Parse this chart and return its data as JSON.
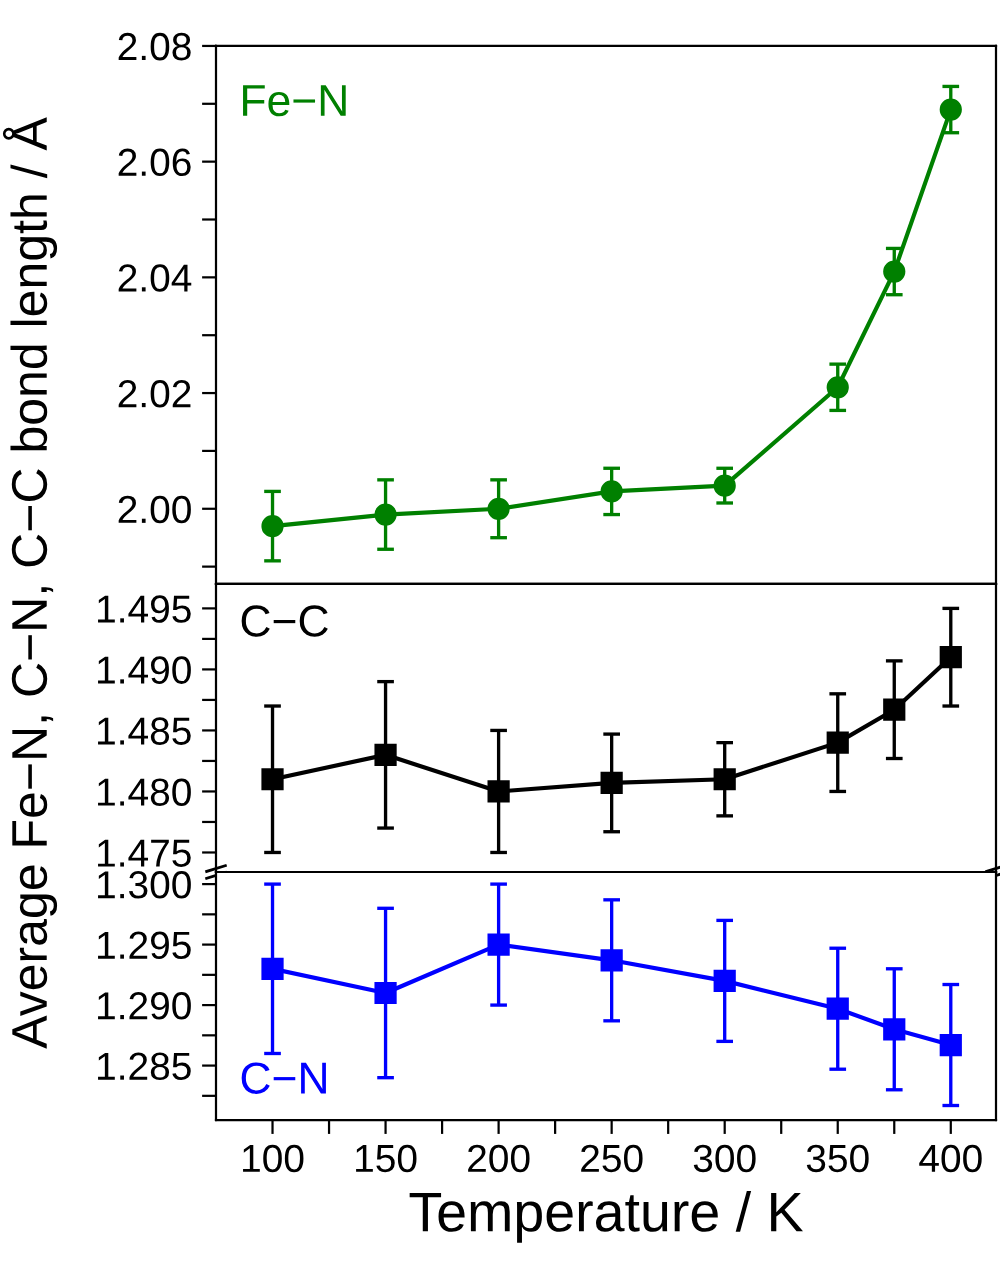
{
  "chart_data": [
    {
      "type": "line",
      "ylabel": "Average Fe−N, C−N, C−C bond length / Å",
      "x": [
        100,
        150,
        200,
        250,
        300,
        350,
        375,
        400
      ],
      "xlim": [
        75,
        420
      ],
      "xticks": [
        {
          "value": 100,
          "label": null
        },
        {
          "value": 125,
          "label": null
        },
        {
          "value": 150,
          "label": null
        },
        {
          "value": 175,
          "label": null
        },
        {
          "value": 200,
          "label": null
        },
        {
          "value": 225,
          "label": null
        },
        {
          "value": 250,
          "label": null
        },
        {
          "value": 275,
          "label": null
        },
        {
          "value": 300,
          "label": null
        },
        {
          "value": 325,
          "label": null
        },
        {
          "value": 350,
          "label": null
        },
        {
          "value": 375,
          "label": null
        },
        {
          "value": 400,
          "label": null
        }
      ],
      "ylim": [
        1.987,
        2.08
      ],
      "yticks": [
        {
          "value": 1.99,
          "label": null
        },
        {
          "value": 2.0,
          "label": "2.00"
        },
        {
          "value": 2.01,
          "label": null
        },
        {
          "value": 2.02,
          "label": "2.02"
        },
        {
          "value": 2.03,
          "label": null
        },
        {
          "value": 2.04,
          "label": "2.04"
        },
        {
          "value": 2.05,
          "label": null
        },
        {
          "value": 2.06,
          "label": "2.06"
        },
        {
          "value": 2.07,
          "label": null
        },
        {
          "value": 2.08,
          "label": "2.08"
        }
      ],
      "series": [
        {
          "name": "Fe−N",
          "color": "#008000",
          "values": [
            1.997,
            1.999,
            2.0,
            2.003,
            2.004,
            2.021,
            2.041,
            2.069
          ],
          "errors": [
            0.006,
            0.006,
            0.005,
            0.004,
            0.003,
            0.004,
            0.004,
            0.004
          ]
        }
      ],
      "marker": "circle",
      "line_style": "solid",
      "legend": "top left",
      "grid": false,
      "tick_labels": "y"
    },
    {
      "type": "line",
      "x": [
        100,
        150,
        200,
        250,
        300,
        350,
        375,
        400
      ],
      "xlim": [
        75,
        420
      ],
      "xticks": [
        {
          "value": 100,
          "label": null
        },
        {
          "value": 125,
          "label": null
        },
        {
          "value": 150,
          "label": null
        },
        {
          "value": 175,
          "label": null
        },
        {
          "value": 200,
          "label": null
        },
        {
          "value": 225,
          "label": null
        },
        {
          "value": 250,
          "label": null
        },
        {
          "value": 275,
          "label": null
        },
        {
          "value": 300,
          "label": null
        },
        {
          "value": 325,
          "label": null
        },
        {
          "value": 350,
          "label": null
        },
        {
          "value": 375,
          "label": null
        },
        {
          "value": 400,
          "label": null
        }
      ],
      "ylim": [
        1.4734,
        1.497
      ],
      "yticks": [
        {
          "value": 1.475,
          "label": "1.475"
        },
        {
          "value": 1.4775,
          "label": null
        },
        {
          "value": 1.48,
          "label": "1.480"
        },
        {
          "value": 1.4825,
          "label": null
        },
        {
          "value": 1.485,
          "label": "1.485"
        },
        {
          "value": 1.4875,
          "label": null
        },
        {
          "value": 1.49,
          "label": "1.490"
        },
        {
          "value": 1.4925,
          "label": null
        },
        {
          "value": 1.495,
          "label": "1.495"
        }
      ],
      "series": [
        {
          "name": "C−C",
          "color": "#000000",
          "values": [
            1.481,
            1.483,
            1.48,
            1.4807,
            1.481,
            1.484,
            1.4867,
            1.491
          ],
          "errors": [
            0.006,
            0.006,
            0.005,
            0.004,
            0.003,
            0.004,
            0.004,
            0.004
          ]
        }
      ],
      "marker": "square",
      "line_style": "solid",
      "legend": "top left",
      "grid": false,
      "tick_labels": "y"
    },
    {
      "type": "line",
      "xlabel": "Temperature / K",
      "x": [
        100,
        150,
        200,
        250,
        300,
        350,
        375,
        400
      ],
      "xlim": [
        75,
        420
      ],
      "xticks": [
        100,
        {
          "value": 125,
          "label": null
        },
        150,
        {
          "value": 175,
          "label": null
        },
        200,
        {
          "value": 225,
          "label": null
        },
        250,
        {
          "value": 275,
          "label": null
        },
        300,
        {
          "value": 325,
          "label": null
        },
        350,
        {
          "value": 375,
          "label": null
        },
        400
      ],
      "ylim": [
        1.2805,
        1.301
      ],
      "yticks": [
        {
          "value": 1.2825,
          "label": null
        },
        {
          "value": 1.285,
          "label": "1.285"
        },
        {
          "value": 1.2875,
          "label": null
        },
        {
          "value": 1.29,
          "label": "1.290"
        },
        {
          "value": 1.2925,
          "label": null
        },
        {
          "value": 1.295,
          "label": "1.295"
        },
        {
          "value": 1.2975,
          "label": null
        },
        {
          "value": 1.3,
          "label": "1.300"
        }
      ],
      "series": [
        {
          "name": "C−N",
          "color": "#0000ff",
          "values": [
            1.293,
            1.291,
            1.295,
            1.2937,
            1.292,
            1.2897,
            1.288,
            1.2867
          ],
          "errors": [
            0.007,
            0.007,
            0.005,
            0.005,
            0.005,
            0.005,
            0.005,
            0.005
          ]
        }
      ],
      "marker": "square",
      "line_style": "solid",
      "legend": "bottom left",
      "grid": false
    }
  ]
}
